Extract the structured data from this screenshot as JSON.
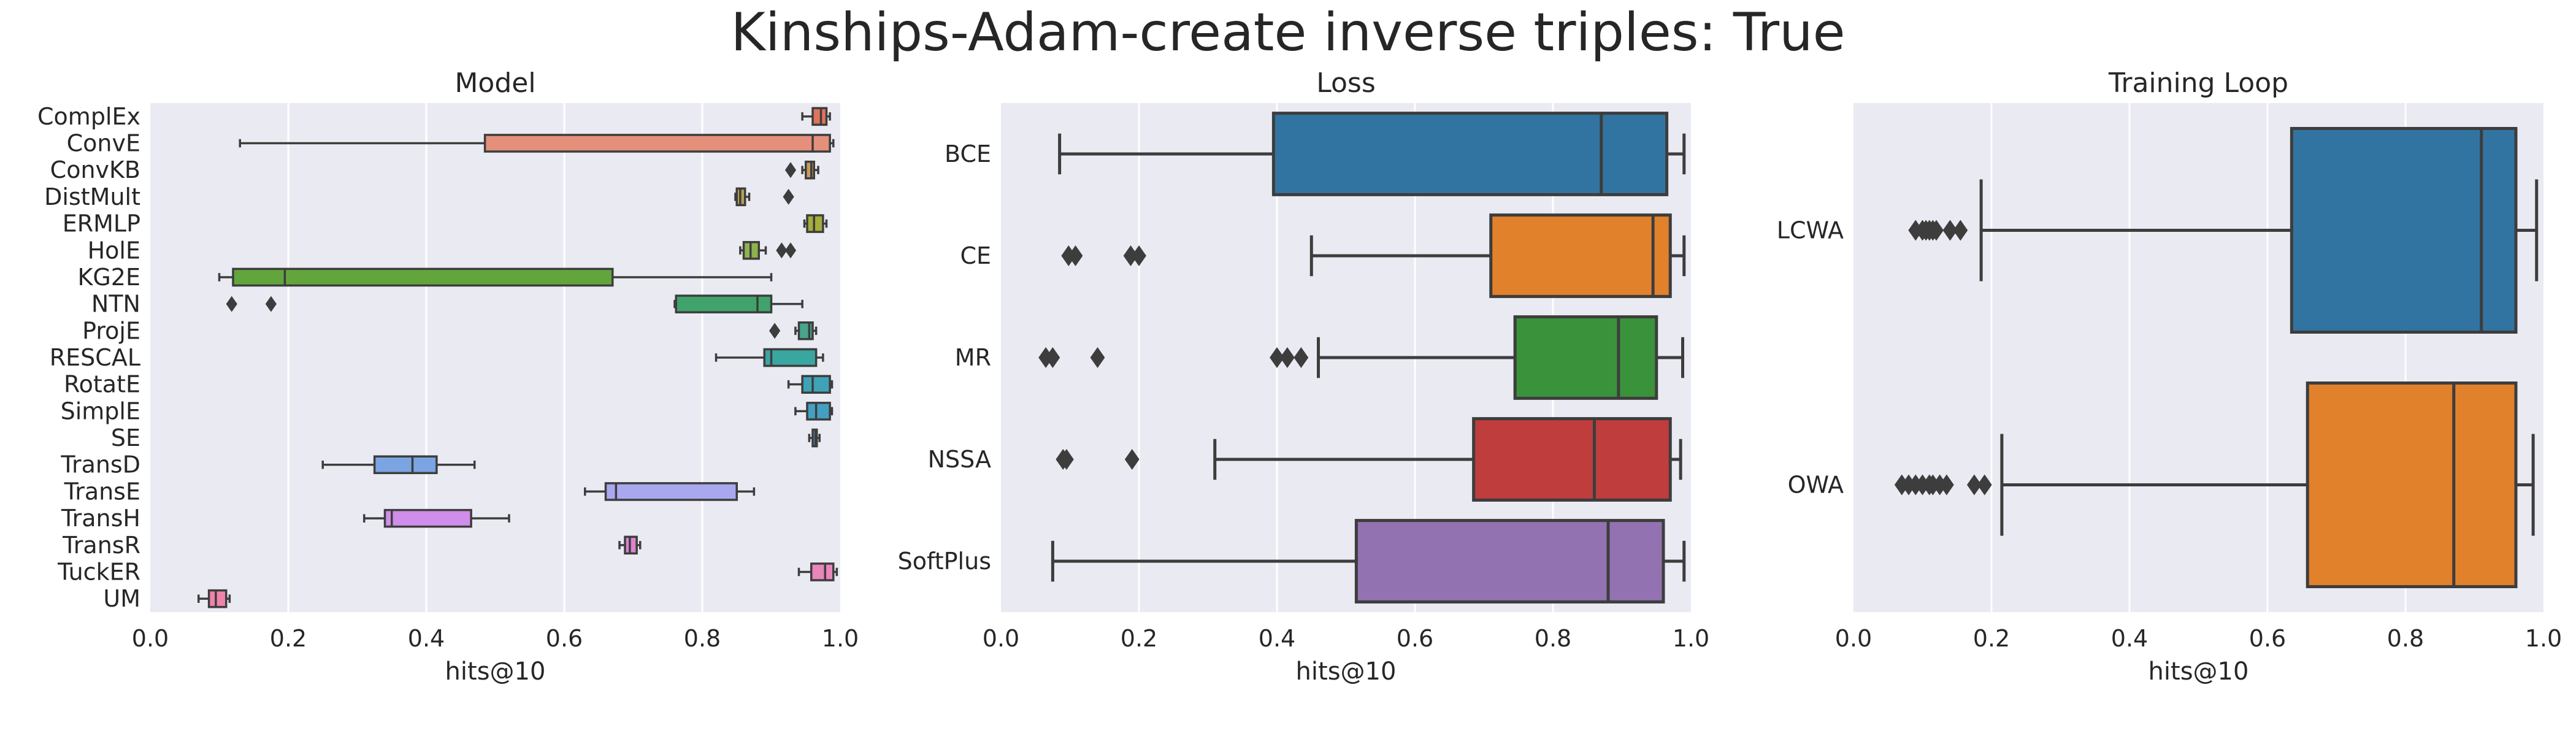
{
  "figure": {
    "suptitle": "Kinships-Adam-create inverse triples: True",
    "background": "#ffffff",
    "axes_facecolor": "#eaeaf2",
    "grid_color": "#ffffff",
    "line_color": "#3d3d3d"
  },
  "chart_data": [
    {
      "type": "box",
      "orientation": "horizontal",
      "title": "Model",
      "xlabel": "hits@10",
      "ylabel": "",
      "xlim": [
        0.0,
        1.0
      ],
      "xticks": [
        0.0,
        0.2,
        0.4,
        0.6,
        0.8,
        1.0
      ],
      "xtick_labels": [
        "0.0",
        "0.2",
        "0.4",
        "0.6",
        "0.8",
        "1.0"
      ],
      "grid": "vertical",
      "categories": [
        "ComplEx",
        "ConvE",
        "ConvKB",
        "DistMult",
        "ERMLP",
        "HolE",
        "KG2E",
        "NTN",
        "ProjE",
        "RESCAL",
        "RotatE",
        "SimplE",
        "SE",
        "TransD",
        "TransE",
        "TransH",
        "TransR",
        "TuckER",
        "UM"
      ],
      "boxes": [
        {
          "name": "ComplEx",
          "color": "#e0735c",
          "whislo": 0.945,
          "q1": 0.96,
          "med": 0.972,
          "q3": 0.98,
          "whishi": 0.985,
          "fliers": []
        },
        {
          "name": "ConvE",
          "color": "#e4907a",
          "whislo": 0.13,
          "q1": 0.485,
          "med": 0.96,
          "q3": 0.985,
          "whishi": 0.99,
          "fliers": []
        },
        {
          "name": "ConvKB",
          "color": "#c69b5d",
          "whislo": 0.945,
          "q1": 0.95,
          "med": 0.958,
          "q3": 0.962,
          "whishi": 0.968,
          "fliers": [
            0.928
          ]
        },
        {
          "name": "DistMult",
          "color": "#b5a254",
          "whislo": 0.848,
          "q1": 0.85,
          "med": 0.855,
          "q3": 0.862,
          "whishi": 0.868,
          "fliers": [
            0.925
          ]
        },
        {
          "name": "ERMLP",
          "color": "#a5ad3c",
          "whislo": 0.948,
          "q1": 0.952,
          "med": 0.962,
          "q3": 0.975,
          "whishi": 0.98,
          "fliers": []
        },
        {
          "name": "HolE",
          "color": "#8fb14e",
          "whislo": 0.855,
          "q1": 0.86,
          "med": 0.87,
          "q3": 0.882,
          "whishi": 0.892,
          "fliers": [
            0.915,
            0.928
          ]
        },
        {
          "name": "KG2E",
          "color": "#62a53d",
          "whislo": 0.1,
          "q1": 0.12,
          "med": 0.195,
          "q3": 0.67,
          "whishi": 0.9,
          "fliers": []
        },
        {
          "name": "NTN",
          "color": "#3fa36b",
          "whislo": 0.76,
          "q1": 0.762,
          "med": 0.88,
          "q3": 0.9,
          "whishi": 0.945,
          "fliers": [
            0.118,
            0.175
          ]
        },
        {
          "name": "ProjE",
          "color": "#47a68d",
          "whislo": 0.935,
          "q1": 0.94,
          "med": 0.955,
          "q3": 0.96,
          "whishi": 0.965,
          "fliers": [
            0.905
          ]
        },
        {
          "name": "RESCAL",
          "color": "#3aa6a0",
          "whislo": 0.82,
          "q1": 0.89,
          "med": 0.9,
          "q3": 0.965,
          "whishi": 0.975,
          "fliers": []
        },
        {
          "name": "RotatE",
          "color": "#3fa3b8",
          "whislo": 0.925,
          "q1": 0.945,
          "med": 0.96,
          "q3": 0.985,
          "whishi": 0.988,
          "fliers": []
        },
        {
          "name": "SimplE",
          "color": "#43a0c2",
          "whislo": 0.935,
          "q1": 0.952,
          "med": 0.965,
          "q3": 0.985,
          "whishi": 0.988,
          "fliers": []
        },
        {
          "name": "SE",
          "color": "#5a9ad2",
          "whislo": 0.955,
          "q1": 0.96,
          "med": 0.964,
          "q3": 0.966,
          "whishi": 0.97,
          "fliers": []
        },
        {
          "name": "TransD",
          "color": "#7ba5e2",
          "whislo": 0.25,
          "q1": 0.325,
          "med": 0.38,
          "q3": 0.415,
          "whishi": 0.47,
          "fliers": []
        },
        {
          "name": "TransE",
          "color": "#a9a8ef",
          "whislo": 0.63,
          "q1": 0.66,
          "med": 0.675,
          "q3": 0.85,
          "whishi": 0.875,
          "fliers": []
        },
        {
          "name": "TransH",
          "color": "#d08de9",
          "whislo": 0.31,
          "q1": 0.34,
          "med": 0.35,
          "q3": 0.465,
          "whishi": 0.52,
          "fliers": []
        },
        {
          "name": "TransR",
          "color": "#dd83d0",
          "whislo": 0.68,
          "q1": 0.688,
          "med": 0.695,
          "q3": 0.705,
          "whishi": 0.71,
          "fliers": []
        },
        {
          "name": "TuckER",
          "color": "#ea86b9",
          "whislo": 0.94,
          "q1": 0.958,
          "med": 0.978,
          "q3": 0.99,
          "whishi": 0.995,
          "fliers": []
        },
        {
          "name": "UM",
          "color": "#f083ab",
          "whislo": 0.07,
          "q1": 0.085,
          "med": 0.095,
          "q3": 0.11,
          "whishi": 0.115,
          "fliers": []
        }
      ]
    },
    {
      "type": "box",
      "orientation": "horizontal",
      "title": "Loss",
      "xlabel": "hits@10",
      "ylabel": "",
      "xlim": [
        0.0,
        1.0
      ],
      "xticks": [
        0.0,
        0.2,
        0.4,
        0.6,
        0.8,
        1.0
      ],
      "xtick_labels": [
        "0.0",
        "0.2",
        "0.4",
        "0.6",
        "0.8",
        "1.0"
      ],
      "grid": "vertical",
      "categories": [
        "BCE",
        "CE",
        "MR",
        "NSSA",
        "SoftPlus"
      ],
      "boxes": [
        {
          "name": "BCE",
          "color": "#3274a1",
          "whislo": 0.085,
          "q1": 0.395,
          "med": 0.87,
          "q3": 0.965,
          "whishi": 0.99,
          "fliers": []
        },
        {
          "name": "CE",
          "color": "#e1812c",
          "whislo": 0.45,
          "q1": 0.71,
          "med": 0.945,
          "q3": 0.97,
          "whishi": 0.99,
          "fliers": [
            0.098,
            0.108,
            0.188,
            0.2
          ]
        },
        {
          "name": "MR",
          "color": "#3a923a",
          "whislo": 0.46,
          "q1": 0.745,
          "med": 0.895,
          "q3": 0.95,
          "whishi": 0.988,
          "fliers": [
            0.065,
            0.075,
            0.14,
            0.4,
            0.415,
            0.435
          ]
        },
        {
          "name": "NSSA",
          "color": "#c03d3e",
          "whislo": 0.31,
          "q1": 0.685,
          "med": 0.86,
          "q3": 0.97,
          "whishi": 0.985,
          "fliers": [
            0.09,
            0.095,
            0.19
          ]
        },
        {
          "name": "SoftPlus",
          "color": "#9372b2",
          "whislo": 0.075,
          "q1": 0.515,
          "med": 0.88,
          "q3": 0.96,
          "whishi": 0.99,
          "fliers": []
        }
      ]
    },
    {
      "type": "box",
      "orientation": "horizontal",
      "title": "Training Loop",
      "xlabel": "hits@10",
      "ylabel": "",
      "xlim": [
        0.0,
        1.0
      ],
      "xticks": [
        0.0,
        0.2,
        0.4,
        0.6,
        0.8,
        1.0
      ],
      "xtick_labels": [
        "0.0",
        "0.2",
        "0.4",
        "0.6",
        "0.8",
        "1.0"
      ],
      "grid": "vertical",
      "categories": [
        "LCWA",
        "OWA"
      ],
      "boxes": [
        {
          "name": "LCWA",
          "color": "#3274a1",
          "whislo": 0.185,
          "q1": 0.635,
          "med": 0.91,
          "q3": 0.96,
          "whishi": 0.99,
          "fliers": [
            0.09,
            0.1,
            0.105,
            0.11,
            0.115,
            0.12,
            0.14,
            0.155
          ]
        },
        {
          "name": "OWA",
          "color": "#e1812c",
          "whislo": 0.215,
          "q1": 0.658,
          "med": 0.87,
          "q3": 0.96,
          "whishi": 0.985,
          "fliers": [
            0.07,
            0.08,
            0.09,
            0.1,
            0.11,
            0.115,
            0.125,
            0.135,
            0.175,
            0.19
          ]
        }
      ]
    }
  ]
}
